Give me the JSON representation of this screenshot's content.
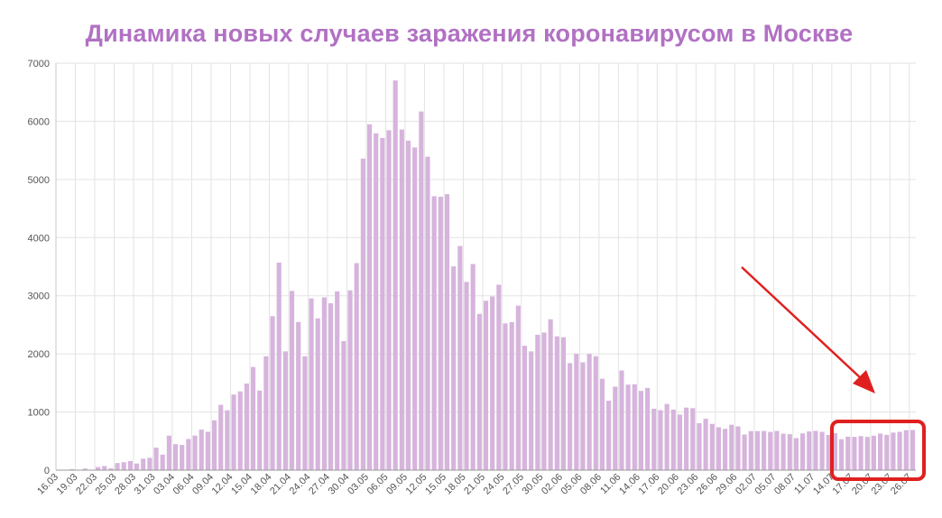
{
  "chart_data": {
    "type": "bar",
    "title": "Динамика новых случаев заражения коронавирусом в Москве",
    "xlabel": "",
    "ylabel": "",
    "ylim": [
      0,
      7000
    ],
    "yticks": [
      0,
      1000,
      2000,
      3000,
      4000,
      5000,
      6000,
      7000
    ],
    "xtick_labels": [
      "16.03",
      "19.03",
      "22.03",
      "25.03",
      "28.03",
      "31.03",
      "03.04",
      "06.04",
      "09.04",
      "12.04",
      "15.04",
      "18.04",
      "21.04",
      "24.04",
      "27.04",
      "30.04",
      "03.05",
      "06.05",
      "09.05",
      "12.05",
      "15.05",
      "18.05",
      "21.05",
      "24.05",
      "27.05",
      "30.05",
      "02.06",
      "05.06",
      "08.06",
      "11.06",
      "14.06",
      "17.06",
      "20.06",
      "23.06",
      "26.06",
      "29.06",
      "02.07",
      "05.07",
      "08.07",
      "11.07",
      "14.07",
      "17.07",
      "20.07",
      "23.07",
      "26.07"
    ],
    "grid": true,
    "start_date": "16.03",
    "values": [
      3,
      0,
      16,
      5,
      28,
      5,
      54,
      71,
      33,
      122,
      137,
      157,
      114,
      197,
      212,
      387,
      267,
      595,
      448,
      434,
      536,
      595,
      697,
      660,
      857,
      1124,
      1030,
      1301,
      1355,
      1489,
      1774,
      1370,
      1959,
      2649,
      3570,
      2043,
      3083,
      2548,
      1959,
      2954,
      2612,
      2971,
      2871,
      3075,
      2220,
      3093,
      3561,
      5358,
      5948,
      5795,
      5714,
      5846,
      6703,
      5858,
      5667,
      5551,
      6169,
      5392,
      4712,
      4703,
      4748,
      3505,
      3855,
      3238,
      3545,
      2688,
      2913,
      2988,
      3190,
      2524,
      2546,
      2830,
      2140,
      2043,
      2330,
      2367,
      2595,
      2301,
      2285,
      1842,
      2001,
      1855,
      1998,
      1961,
      1572,
      1195,
      1436,
      1715,
      1471,
      1477,
      1363,
      1415,
      1057,
      1032,
      1139,
      1042,
      956,
      1076,
      1066,
      808,
      884,
      796,
      738,
      711,
      782,
      753,
      613,
      672,
      673,
      674,
      658,
      675,
      627,
      619,
      551,
      633,
      666,
      676,
      659,
      606,
      636,
      533,
      576,
      573,
      585,
      572,
      592,
      629,
      607,
      647,
      660,
      688,
      692
    ],
    "colors": {
      "bar": "#d6b4dc",
      "title": "#b171c3",
      "annotation": "#e02020",
      "grid": "#e3e3e3"
    }
  }
}
